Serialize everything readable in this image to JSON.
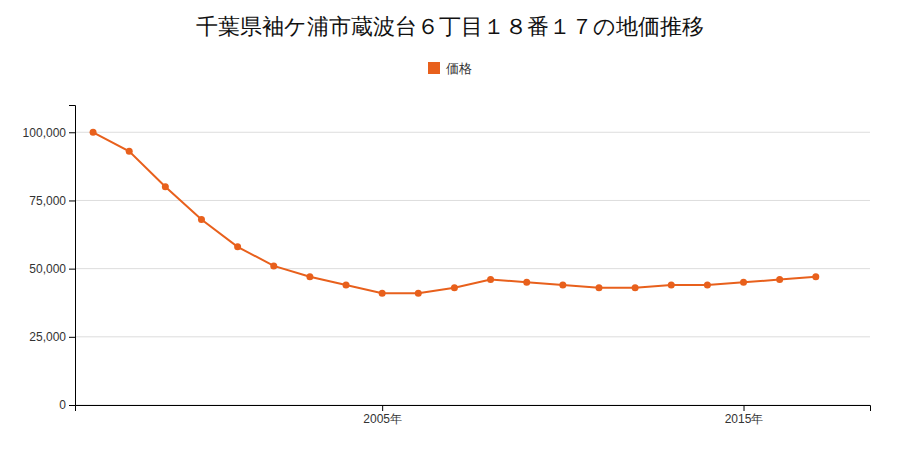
{
  "chart_data": {
    "type": "line",
    "title": "千葉県袖ケ浦市蔵波台６丁目１８番１７の地価推移",
    "x": [
      1997,
      1998,
      1999,
      2000,
      2001,
      2002,
      2003,
      2004,
      2005,
      2006,
      2007,
      2008,
      2009,
      2010,
      2011,
      2012,
      2013,
      2014,
      2015,
      2016,
      2017
    ],
    "series": [
      {
        "name": "価格",
        "color": "#E8601C",
        "marker": "circle",
        "values": [
          100000,
          93000,
          80000,
          68000,
          58000,
          51000,
          47000,
          44000,
          41000,
          41000,
          43000,
          46000,
          45000,
          44000,
          43000,
          43000,
          44000,
          44000,
          45000,
          46000,
          47000
        ]
      }
    ],
    "xlim": [
      1996.5,
      2018.5
    ],
    "xticks": [
      {
        "value": 2005,
        "label": "2005年"
      },
      {
        "value": 2015,
        "label": "2015年"
      }
    ],
    "ylim": [
      0,
      110000
    ],
    "yticks": [
      0,
      {
        "value": 25000,
        "label": "25,000"
      },
      {
        "value": 50000,
        "label": "50,000"
      },
      {
        "value": 75000,
        "label": "75,000"
      },
      {
        "value": 100000,
        "label": "100,000"
      }
    ],
    "grid": true,
    "legend": "top"
  }
}
